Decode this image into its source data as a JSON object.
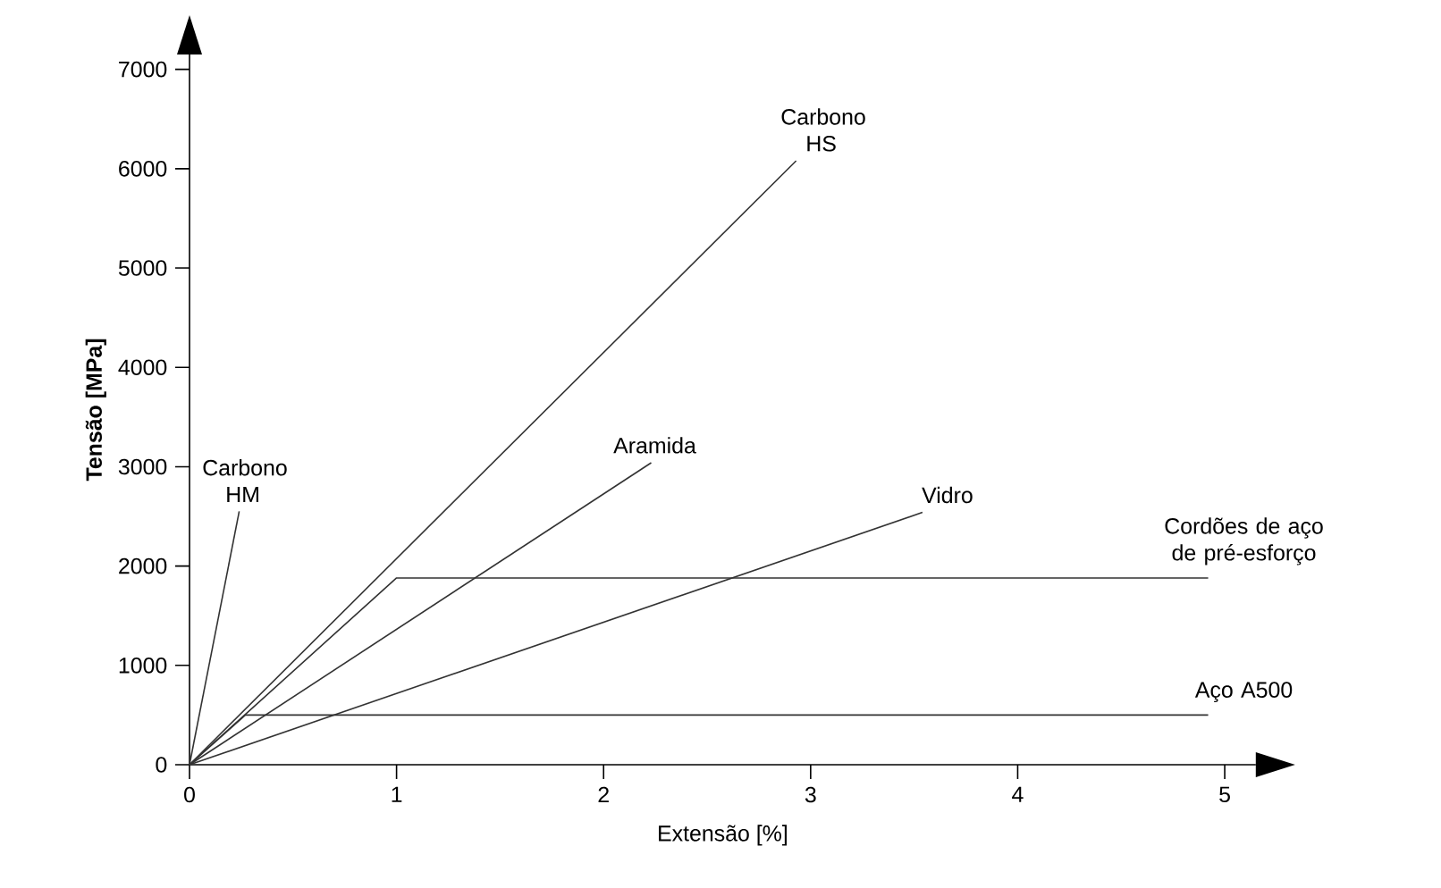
{
  "chart_data": {
    "type": "line",
    "xlabel": "Extensão [%]",
    "ylabel": "Tensão [MPa]",
    "xlim": [
      0,
      5.15
    ],
    "ylim": [
      0,
      7150
    ],
    "xticks": [
      0,
      1,
      2,
      3,
      4,
      5
    ],
    "yticks": [
      0,
      1000,
      2000,
      3000,
      4000,
      5000,
      6000,
      7000
    ],
    "marker": "none",
    "line_style": "solid",
    "series": [
      {
        "name": "Carbono HM",
        "color": "#333333",
        "x": [
          0,
          0.24
        ],
        "values": [
          0,
          2550
        ]
      },
      {
        "name": "Carbono HS",
        "color": "#333333",
        "x": [
          0,
          2.93
        ],
        "values": [
          0,
          6080
        ]
      },
      {
        "name": "Aramida",
        "color": "#333333",
        "x": [
          0,
          2.23
        ],
        "values": [
          0,
          3040
        ]
      },
      {
        "name": "Vidro",
        "color": "#333333",
        "x": [
          0,
          3.54
        ],
        "values": [
          0,
          2540
        ]
      },
      {
        "name": "Cordões de aço de pré-esforço",
        "color": "#333333",
        "x": [
          0,
          1.0,
          4.92
        ],
        "values": [
          0,
          1880,
          1880
        ]
      },
      {
        "name": "Aço A500",
        "color": "#333333",
        "x": [
          0,
          0.27,
          4.92
        ],
        "values": [
          0,
          500,
          500
        ]
      }
    ]
  }
}
